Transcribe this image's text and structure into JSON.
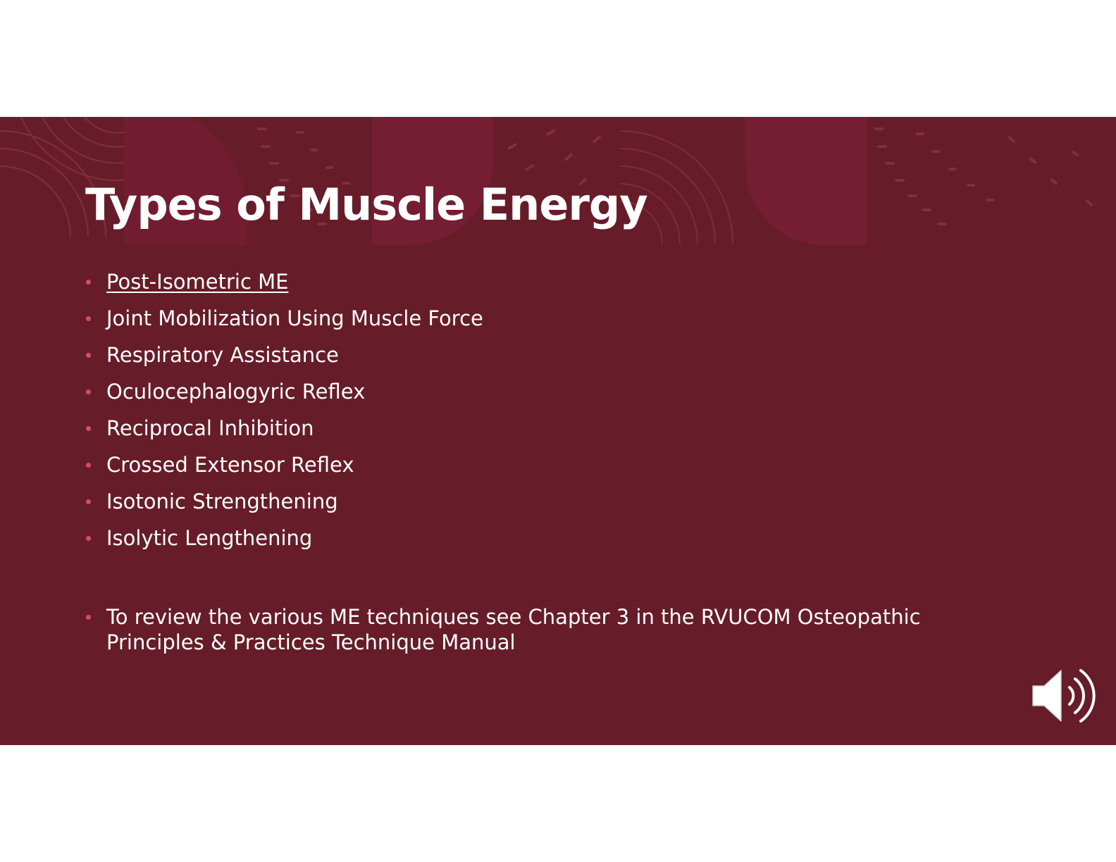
{
  "slide": {
    "title": "Types of Muscle Energy",
    "bullets": [
      {
        "label": "Post-Isometric ME",
        "is_link": true
      },
      {
        "label": "Joint Mobilization Using Muscle Force",
        "is_link": false
      },
      {
        "label": "Respiratory Assistance",
        "is_link": false
      },
      {
        "label": "Oculocephalogyric Reflex",
        "is_link": false
      },
      {
        "label": "Reciprocal Inhibition",
        "is_link": false
      },
      {
        "label": "Crossed Extensor Reflex",
        "is_link": false
      },
      {
        "label": "Isotonic Strengthening",
        "is_link": false
      },
      {
        "label": "Isolytic Lengthening",
        "is_link": false
      }
    ],
    "note": "To review the various ME techniques see Chapter 3 in the RVUCOM Osteopathic Principles & Practices Technique Manual",
    "audio_icon": "speaker-volume-icon"
  },
  "colors": {
    "background": "#661d29",
    "accent_shape": "#751d33",
    "bullet": "#d44c6a",
    "text": "#ffffff",
    "page": "#ffffff"
  }
}
